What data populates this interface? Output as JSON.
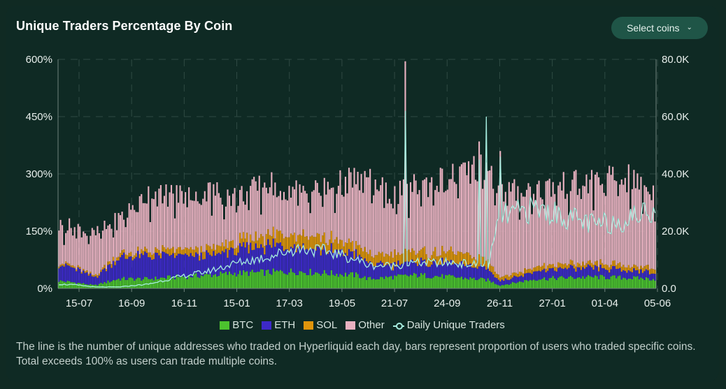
{
  "title": "Unique Traders Percentage By Coin",
  "select_button": {
    "label": "Select coins",
    "icon": "chevron-down-icon"
  },
  "chart_data": {
    "type": "bar+line",
    "title": "Unique Traders Percentage By Coin",
    "x_ticks": [
      "15-07",
      "16-09",
      "16-11",
      "15-01",
      "17-03",
      "19-05",
      "21-07",
      "24-09",
      "26-11",
      "27-01",
      "01-04",
      "05-06"
    ],
    "y_left": {
      "ticks": [
        "0%",
        "150%",
        "300%",
        "450%",
        "600%"
      ],
      "range": [
        0,
        600
      ],
      "unit": "%"
    },
    "y_right": {
      "ticks": [
        "0.0",
        "20.0K",
        "40.0K",
        "60.0K",
        "80.0K"
      ],
      "range": [
        0,
        80000
      ]
    },
    "stacked_series": [
      {
        "name": "BTC",
        "color": "#4cc22e"
      },
      {
        "name": "ETH",
        "color": "#3d29c8"
      },
      {
        "name": "SOL",
        "color": "#e0950c"
      },
      {
        "name": "Other",
        "color": "#e8b1c0"
      }
    ],
    "line_series": {
      "name": "Daily Unique Traders",
      "color": "#a6eddf"
    },
    "keypoints": {
      "x": [
        0,
        0.03,
        0.06,
        0.1,
        0.15,
        0.2,
        0.25,
        0.3,
        0.35,
        0.4,
        0.45,
        0.5,
        0.52,
        0.56,
        0.6,
        0.66,
        0.72,
        0.74,
        0.8,
        0.85,
        0.9,
        0.95,
        1
      ],
      "btc": [
        20,
        15,
        8,
        25,
        25,
        30,
        35,
        40,
        42,
        45,
        40,
        35,
        25,
        30,
        35,
        30,
        22,
        8,
        25,
        28,
        30,
        28,
        25
      ],
      "eth": [
        45,
        35,
        20,
        55,
        60,
        55,
        50,
        60,
        70,
        70,
        60,
        55,
        40,
        30,
        35,
        35,
        30,
        12,
        20,
        25,
        22,
        20,
        18
      ],
      "sol": [
        5,
        5,
        5,
        10,
        12,
        15,
        18,
        22,
        28,
        30,
        30,
        25,
        25,
        28,
        28,
        28,
        25,
        10,
        12,
        12,
        12,
        12,
        12
      ],
      "total": [
        165,
        160,
        140,
        180,
        250,
        245,
        255,
        240,
        275,
        255,
        260,
        290,
        280,
        240,
        270,
        290,
        330,
        250,
        260,
        270,
        280,
        290,
        250
      ],
      "traders_k": [
        1.5,
        1.2,
        0.5,
        0.5,
        1.5,
        4,
        6,
        9,
        11,
        14,
        13,
        10,
        8,
        8,
        9,
        9,
        8,
        25,
        28,
        25,
        22,
        24,
        28
      ]
    },
    "spikes": [
      {
        "x_frac": 0.5825,
        "total_pct": 595,
        "traders_k": 62
      },
      {
        "x_frac": 0.7175,
        "total_pct": 330,
        "traders_k": 60
      },
      {
        "x_frac": 0.7415,
        "total_pct": 360,
        "traders_k": 46
      },
      {
        "x_frac": 0.7055,
        "total_pct": 385,
        "traders_k": 45
      }
    ],
    "legend": [
      "BTC",
      "ETH",
      "SOL",
      "Other",
      "Daily Unique Traders"
    ]
  },
  "caption": "The line is the number of unique addresses who traded on Hyperliquid each day, bars represent proportion of users who traded specific coins. Total exceeds 100% as users can trade multiple coins."
}
